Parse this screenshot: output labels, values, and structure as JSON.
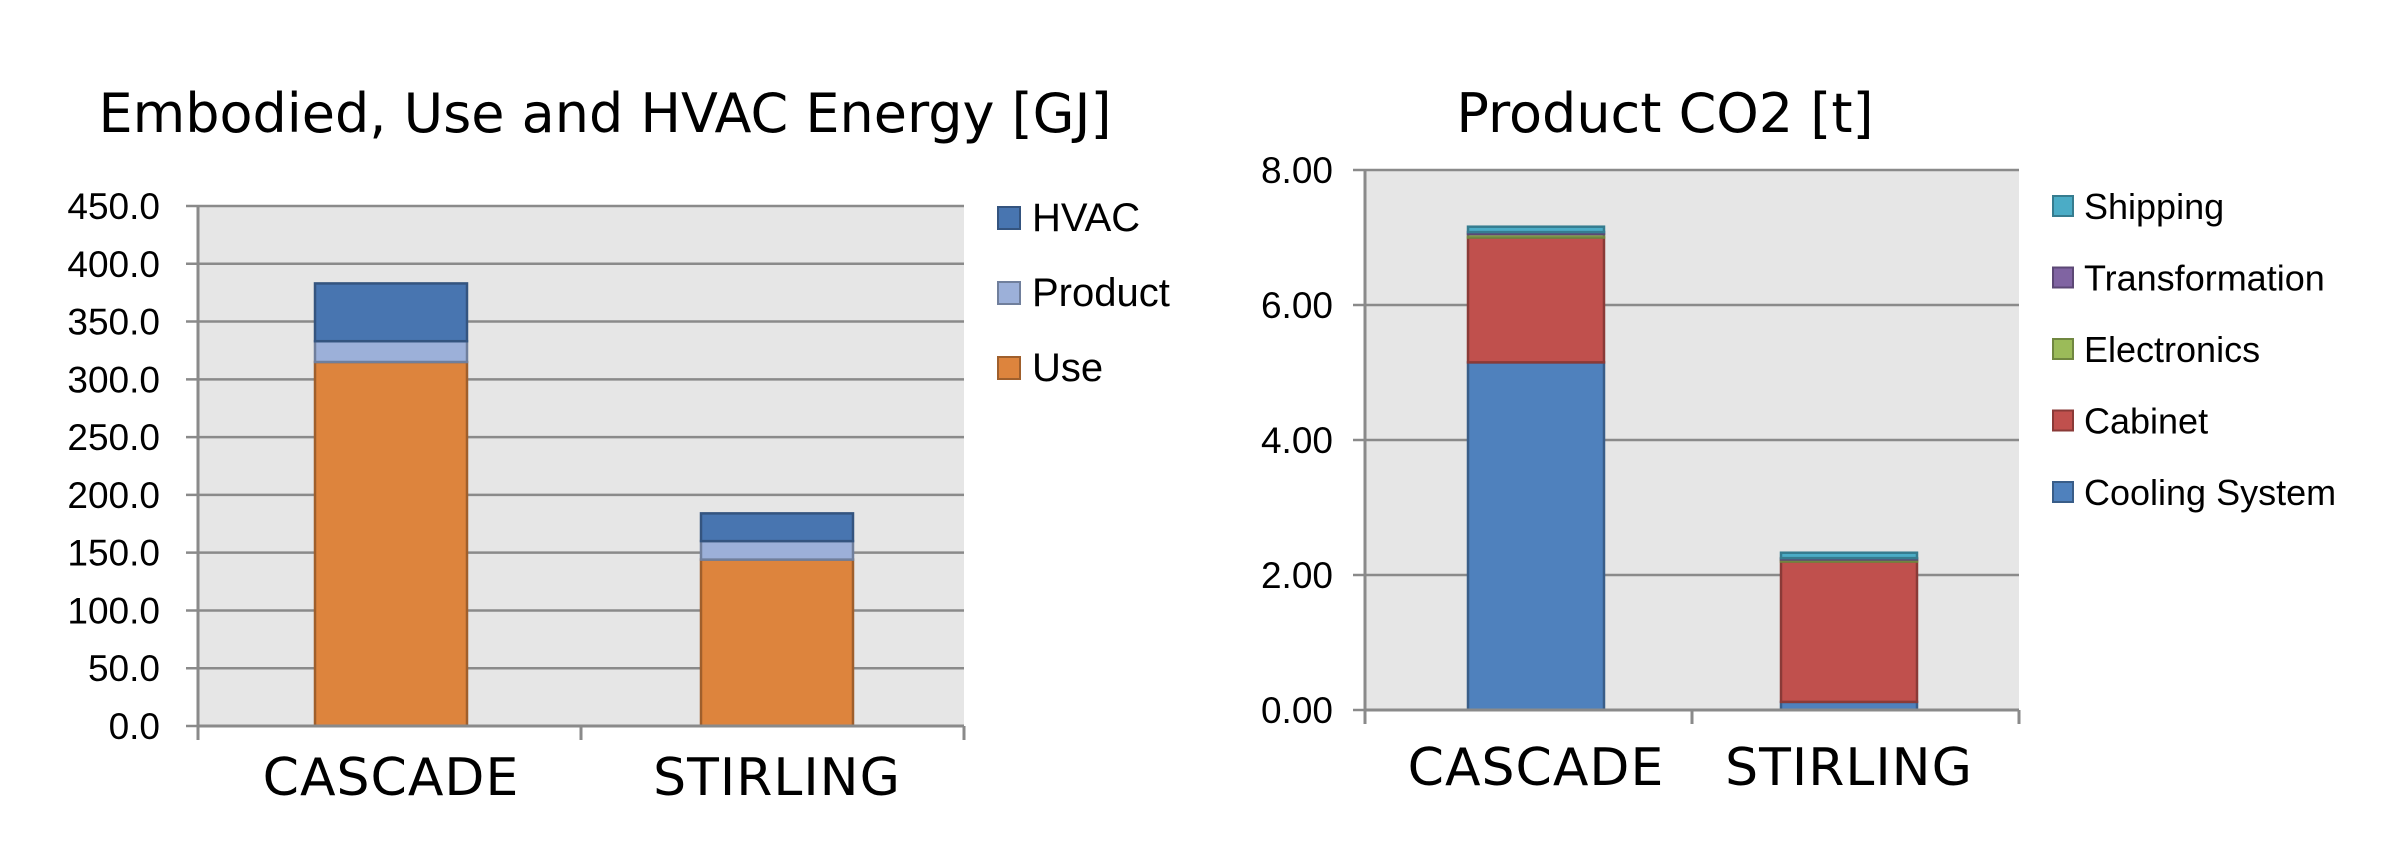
{
  "chart_data": [
    {
      "type": "bar",
      "stacked": true,
      "title": "Embodied, Use and HVAC Energy [GJ]",
      "categories": [
        "CASCADE",
        "STIRLING"
      ],
      "series": [
        {
          "name": "Use",
          "color": "#dd843d",
          "values": [
            315,
            144
          ]
        },
        {
          "name": "Product",
          "color": "#9cb0d9",
          "values": [
            18,
            16
          ]
        },
        {
          "name": "HVAC",
          "color": "#4875b0",
          "values": [
            50,
            24
          ]
        }
      ],
      "legend_order": [
        "HVAC",
        "Product",
        "Use"
      ],
      "ylim": [
        0,
        450
      ],
      "yticks": [
        "0.0",
        "50.0",
        "100.0",
        "150.0",
        "200.0",
        "250.0",
        "300.0",
        "350.0",
        "400.0",
        "450.0"
      ],
      "grid": true,
      "legend_position": "right"
    },
    {
      "type": "bar",
      "stacked": true,
      "title": "Product CO2 [t]",
      "categories": [
        "CASCADE",
        "STIRLING"
      ],
      "series": [
        {
          "name": "Cooling System",
          "color": "#4f81bd",
          "values": [
            5.15,
            0.12
          ]
        },
        {
          "name": "Cabinet",
          "color": "#c0504d",
          "values": [
            1.85,
            2.08
          ]
        },
        {
          "name": "Electronics",
          "color": "#9bbb59",
          "values": [
            0.05,
            0.03
          ]
        },
        {
          "name": "Transformation",
          "color": "#8064a2",
          "values": [
            0.03,
            0.02
          ]
        },
        {
          "name": "Shipping",
          "color": "#4bacc6",
          "values": [
            0.08,
            0.08
          ]
        }
      ],
      "legend_order": [
        "Shipping",
        "Transformation",
        "Electronics",
        "Cabinet",
        "Cooling System"
      ],
      "ylim": [
        0,
        8
      ],
      "yticks": [
        "0.00",
        "2.00",
        "4.00",
        "6.00",
        "8.00"
      ],
      "grid": true,
      "legend_position": "right"
    }
  ]
}
